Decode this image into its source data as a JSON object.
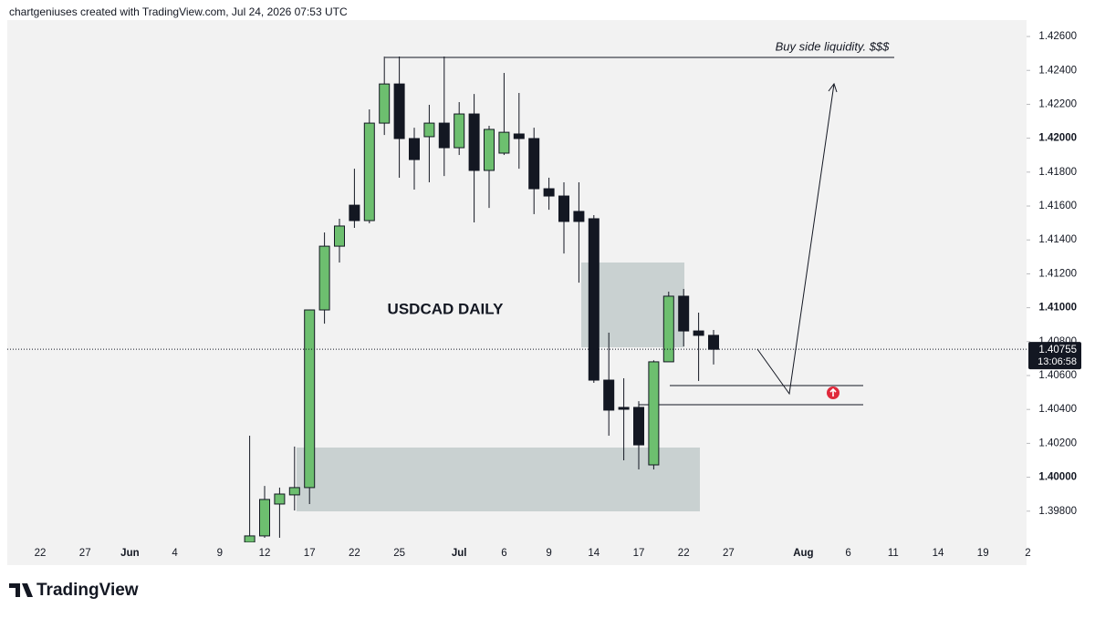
{
  "header": "chartgeniuses created with TradingView.com, Jul 24, 2026 07:53 UTC",
  "footer": "TradingView",
  "chart_data": {
    "type": "candlestick",
    "title": "USDCAD DAILY",
    "annotation": "Buy side liquidity. $$$",
    "up_color": "#6dbf6f",
    "down_color": "#131722",
    "grid": false,
    "categories": [
      "22",
      null,
      null,
      "27",
      null,
      null,
      "Jun",
      null,
      null,
      "4",
      null,
      null,
      "9",
      null,
      null,
      "12",
      null,
      null,
      "17",
      null,
      null,
      "22",
      null,
      null,
      "25",
      null,
      null,
      null,
      "Jul",
      null,
      null,
      "6",
      null,
      null,
      "9",
      null,
      null,
      "14",
      null,
      null,
      "17",
      null,
      null,
      "22",
      null,
      null,
      "27",
      null,
      null,
      null,
      null,
      "Aug",
      null,
      null,
      "6",
      null,
      null,
      "11",
      null,
      null,
      "14",
      null,
      null,
      "19",
      null,
      null,
      "2"
    ],
    "open": [
      null,
      null,
      null,
      null,
      null,
      null,
      null,
      null,
      null,
      null,
      null,
      null,
      null,
      null,
      1.39616,
      1.39654,
      1.39842,
      1.39896,
      1.39939,
      1.40987,
      1.41363,
      1.41605,
      1.41514,
      1.42089,
      1.4232,
      1.41998,
      1.42009,
      1.42089,
      1.41944,
      1.42143,
      1.4181,
      1.41912,
      1.42025,
      1.41998,
      1.41702,
      1.41659,
      1.41568,
      1.41525,
      1.40573,
      1.40412,
      1.40412,
      1.40073,
      1.40681,
      1.41068,
      1.40863,
      1.40837,
      null,
      null,
      null,
      null,
      null,
      null,
      null,
      null,
      null,
      null,
      null,
      null,
      null,
      null,
      null,
      null,
      null,
      null,
      null,
      null,
      null
    ],
    "high": [
      null,
      null,
      null,
      null,
      null,
      null,
      null,
      null,
      null,
      null,
      null,
      null,
      null,
      null,
      1.40245,
      1.39949,
      1.39939,
      1.40181,
      1.4099,
      1.41444,
      1.41525,
      1.4182,
      1.4217,
      1.42482,
      1.42482,
      1.42062,
      1.42197,
      1.42482,
      1.42213,
      1.42261,
      1.42073,
      1.42385,
      1.42267,
      1.42062,
      1.41767,
      1.4174,
      1.4174,
      1.41546,
      1.40853,
      1.40584,
      1.40449,
      1.4069,
      1.41095,
      1.41111,
      1.40971,
      1.40869,
      null,
      null,
      null,
      null,
      null,
      null,
      null,
      null,
      null,
      null,
      null,
      null,
      null,
      null,
      null,
      null,
      null,
      null,
      null,
      null,
      null
    ],
    "low": [
      null,
      null,
      null,
      null,
      null,
      null,
      null,
      null,
      null,
      null,
      null,
      null,
      null,
      null,
      1.39616,
      1.39643,
      1.39643,
      1.39804,
      1.39842,
      1.40906,
      1.41267,
      1.41471,
      1.41498,
      1.42019,
      1.41767,
      1.41697,
      1.4174,
      1.41777,
      1.41901,
      1.41503,
      1.41589,
      1.41901,
      1.4182,
      1.41552,
      1.41578,
      1.4132,
      1.41148,
      1.40557,
      1.40245,
      1.401,
      1.40046,
      1.40046,
      1.40681,
      1.40772,
      1.40568,
      1.40665,
      null,
      null,
      null,
      null,
      null,
      null,
      null,
      null,
      null,
      null,
      null,
      null,
      null,
      null,
      null,
      null,
      null,
      null,
      null,
      null,
      null
    ],
    "close": [
      null,
      null,
      null,
      null,
      null,
      null,
      null,
      null,
      null,
      null,
      null,
      null,
      null,
      null,
      1.39654,
      1.39869,
      1.39901,
      1.39939,
      1.40987,
      1.41363,
      1.41482,
      1.41514,
      1.42089,
      1.4232,
      1.41998,
      1.41874,
      1.42089,
      1.41944,
      1.42143,
      1.4181,
      1.42052,
      1.42035,
      1.41998,
      1.41702,
      1.41659,
      1.41509,
      1.41509,
      1.40573,
      1.40396,
      1.40401,
      1.40191,
      1.40681,
      1.41068,
      1.40863,
      1.40837,
      1.40755,
      null,
      null,
      null,
      null,
      null,
      null,
      null,
      null,
      null,
      null,
      null,
      null,
      null,
      null,
      null,
      null,
      null,
      null,
      null,
      null,
      null
    ],
    "last_price": 1.40755,
    "countdown": "13:06:58",
    "ylim": [
      1.39616,
      1.42697
    ],
    "yticks": [
      {
        "value": 1.398,
        "label": "1.39800"
      },
      {
        "value": 1.4,
        "label": "1.40000"
      },
      {
        "value": 1.402,
        "label": "1.40200"
      },
      {
        "value": 1.404,
        "label": "1.40400"
      },
      {
        "value": 1.406,
        "label": "1.40600"
      },
      {
        "value": 1.408,
        "label": "1.40800"
      },
      {
        "value": 1.41,
        "label": "1.41000"
      },
      {
        "value": 1.412,
        "label": "1.41200"
      },
      {
        "value": 1.414,
        "label": "1.41400"
      },
      {
        "value": 1.416,
        "label": "1.41600"
      },
      {
        "value": 1.418,
        "label": "1.41800"
      },
      {
        "value": 1.42,
        "label": "1.42000"
      },
      {
        "value": 1.422,
        "label": "1.42200"
      },
      {
        "value": 1.424,
        "label": "1.42400"
      },
      {
        "value": 1.426,
        "label": "1.42600"
      }
    ]
  }
}
